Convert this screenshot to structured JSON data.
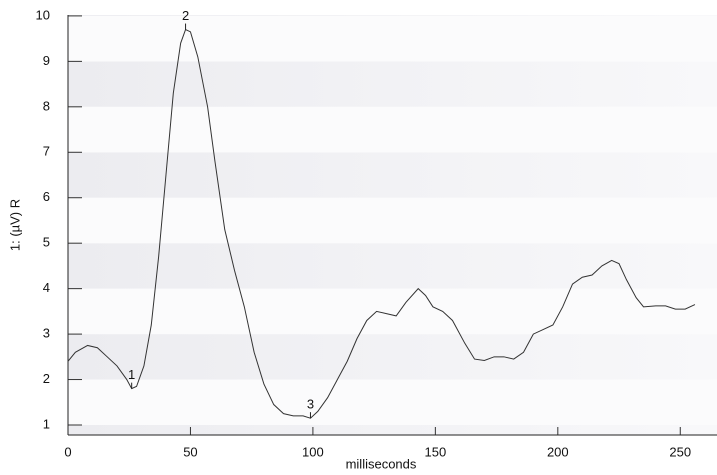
{
  "chart_data": {
    "type": "line",
    "x_label": "milliseconds",
    "y_label": "1: (µV) R",
    "x": [
      0,
      3,
      8,
      12,
      16,
      20,
      24,
      26,
      28,
      31,
      34,
      37,
      40,
      43,
      46,
      48,
      50,
      53,
      57,
      60,
      64,
      68,
      72,
      76,
      80,
      84,
      88,
      92,
      96,
      99,
      102,
      106,
      110,
      114,
      118,
      122,
      126,
      130,
      134,
      138,
      143,
      146,
      149,
      153,
      157,
      162,
      166,
      170,
      174,
      178,
      182,
      186,
      190,
      194,
      198,
      202,
      206,
      210,
      214,
      218,
      222,
      225,
      228,
      232,
      235,
      240,
      244,
      248,
      252,
      256
    ],
    "series": [
      {
        "color": "#333333",
        "values": [
          2.4,
          2.6,
          2.75,
          2.7,
          2.5,
          2.3,
          2.0,
          1.8,
          1.85,
          2.3,
          3.2,
          4.7,
          6.5,
          8.3,
          9.4,
          9.7,
          9.65,
          9.1,
          8.0,
          6.8,
          5.3,
          4.4,
          3.6,
          2.6,
          1.9,
          1.45,
          1.25,
          1.2,
          1.2,
          1.15,
          1.3,
          1.6,
          2.0,
          2.4,
          2.9,
          3.3,
          3.5,
          3.45,
          3.4,
          3.7,
          4.0,
          3.85,
          3.6,
          3.5,
          3.3,
          2.8,
          2.45,
          2.42,
          2.5,
          2.5,
          2.45,
          2.6,
          3.0,
          3.1,
          3.2,
          3.6,
          4.1,
          4.25,
          4.3,
          4.5,
          4.62,
          4.55,
          4.2,
          3.8,
          3.6,
          3.62,
          3.62,
          3.55,
          3.55,
          3.65
        ]
      }
    ],
    "annotations": [
      {
        "label": "1",
        "x": 26,
        "y": 1.8
      },
      {
        "label": "2",
        "x": 48,
        "y": 9.7
      },
      {
        "label": "3",
        "x": 99,
        "y": 1.15
      }
    ],
    "xlim": [
      0,
      265
    ],
    "ylim": [
      0.78,
      10.02
    ],
    "xticks": [
      0,
      50,
      100,
      150,
      200,
      250
    ],
    "yticks": [
      1,
      2,
      3,
      4,
      5,
      6,
      7,
      8,
      9,
      10
    ],
    "banded_background": true
  }
}
